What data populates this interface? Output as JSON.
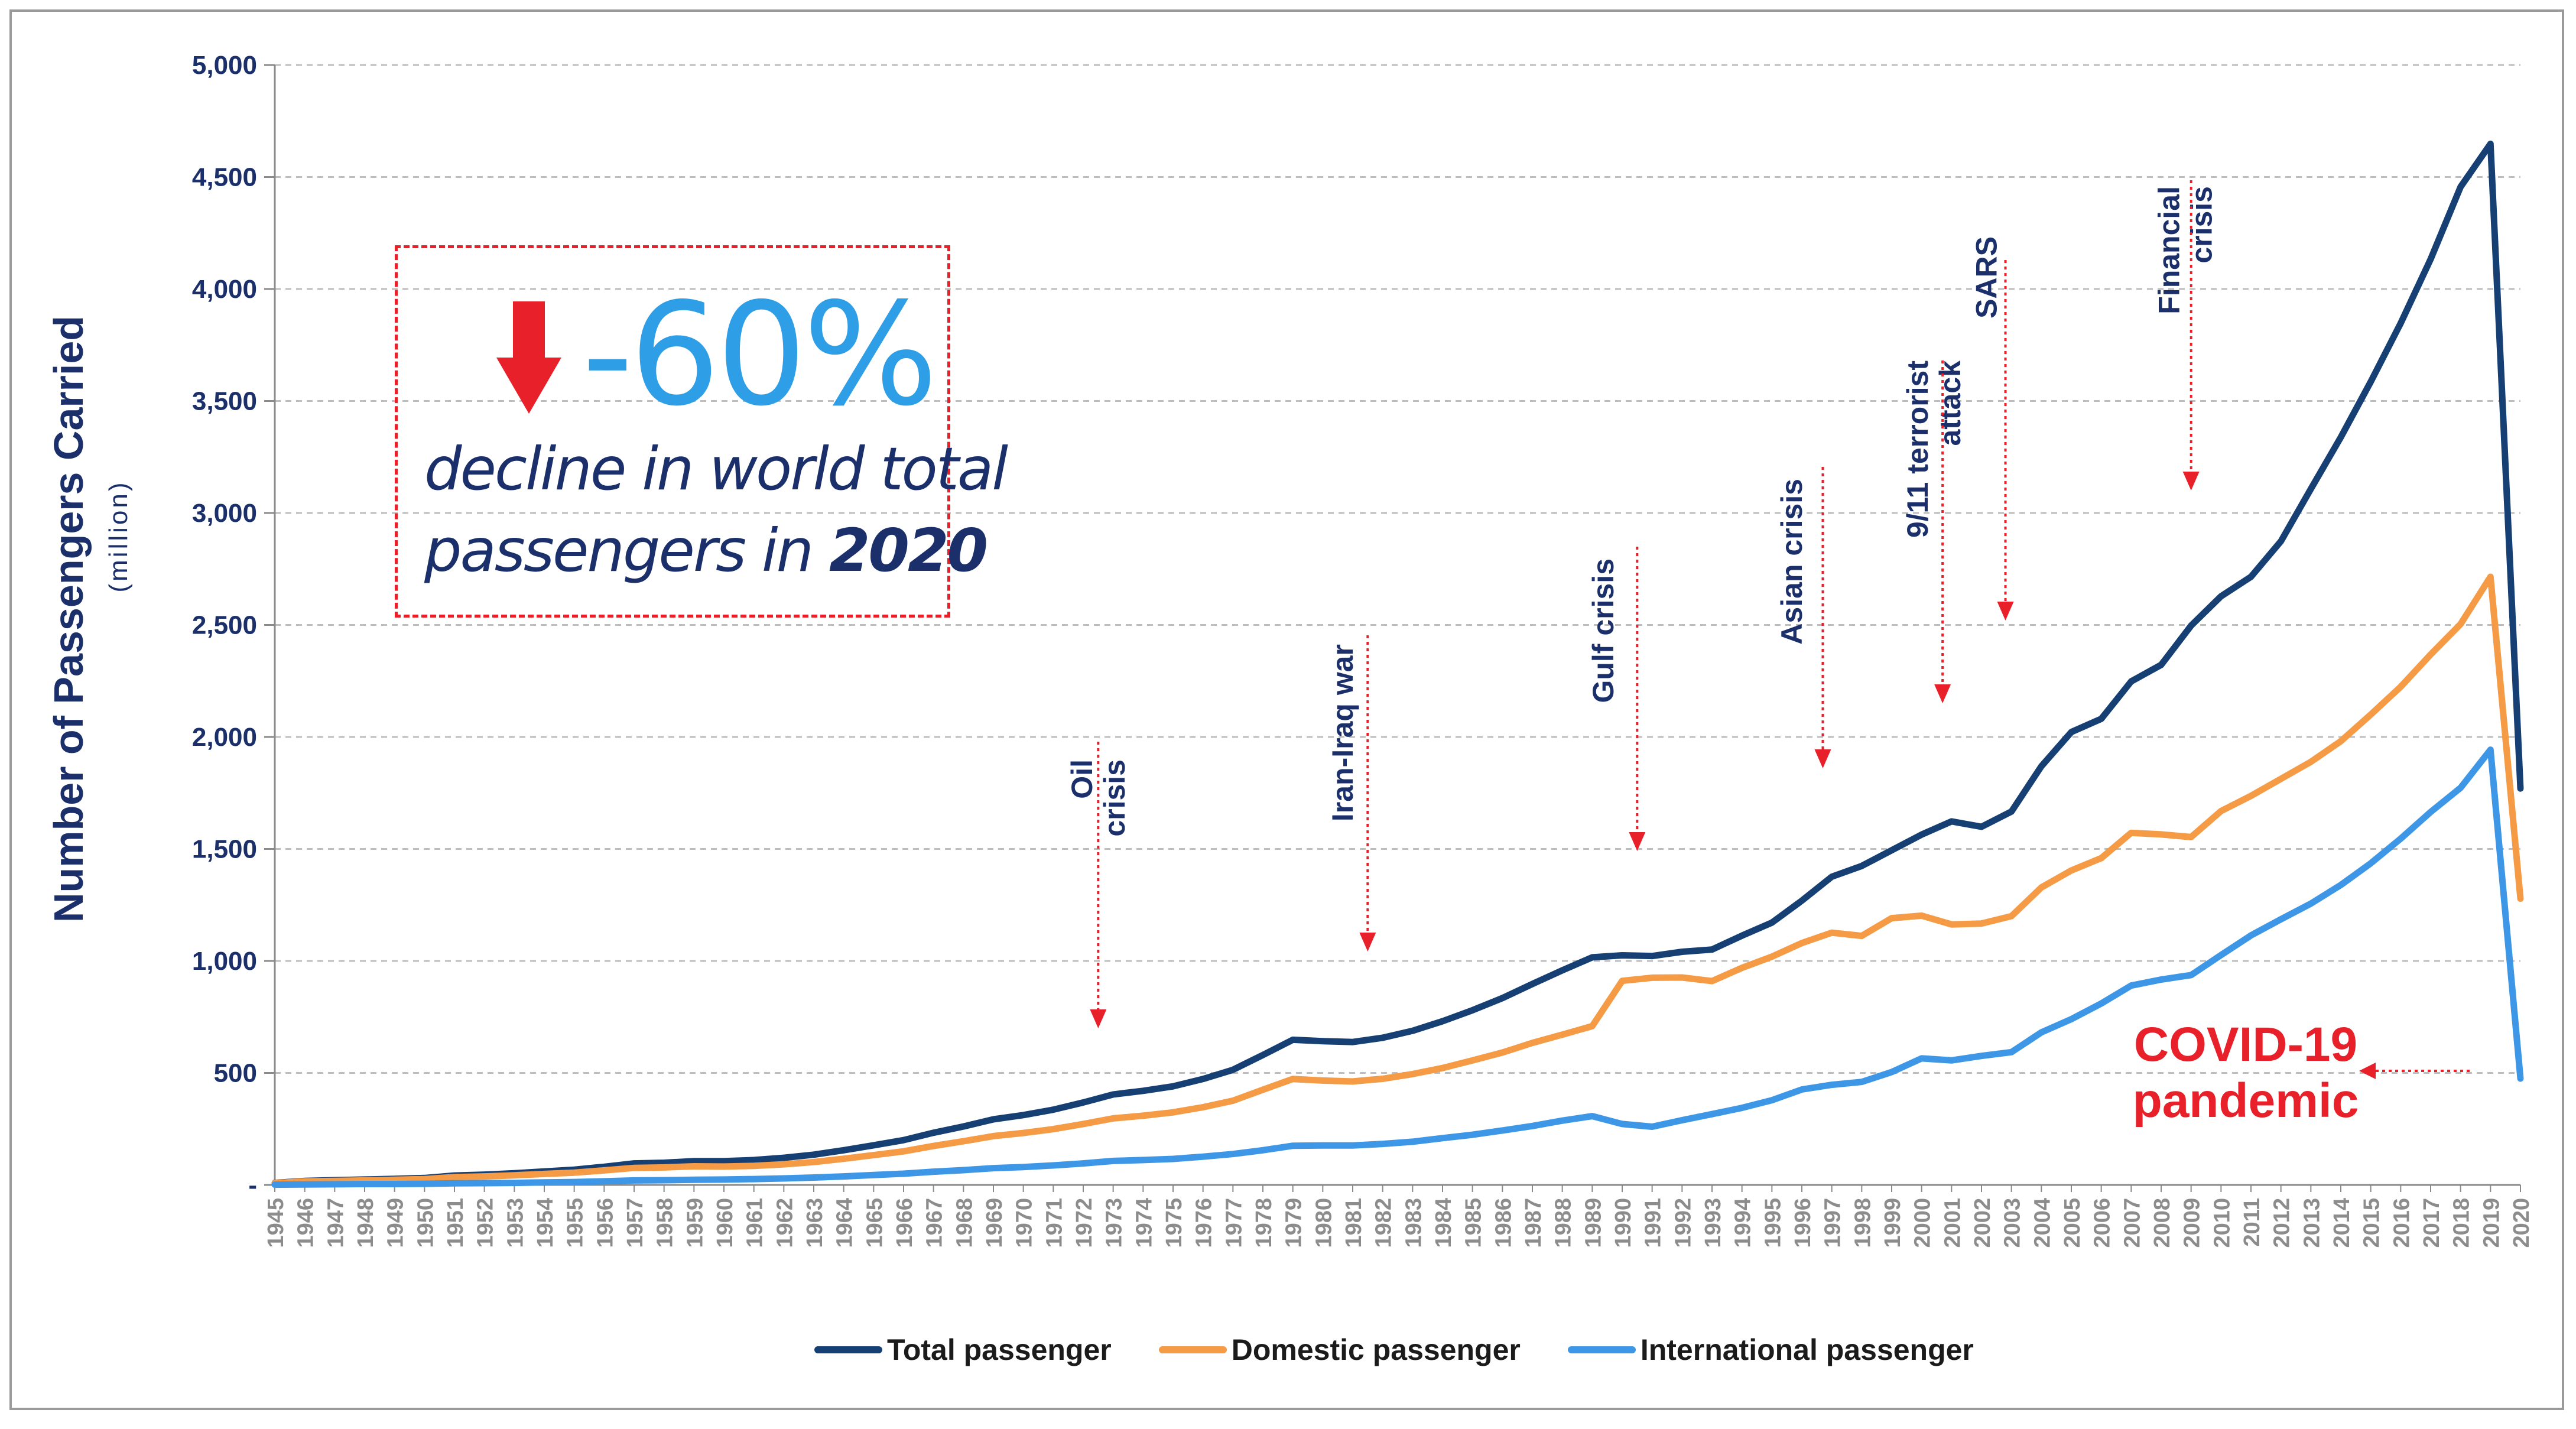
{
  "chart_data": {
    "type": "line",
    "title": "",
    "ylabel": "Number of Passengers Carried",
    "ylabel_sub": "(million)",
    "xlabel": "",
    "ylim": [
      0,
      5000
    ],
    "yticks": [
      0,
      500,
      1000,
      1500,
      2000,
      2500,
      3000,
      3500,
      4000,
      4500,
      5000
    ],
    "ytick_labels": [
      "-",
      "500",
      "1,000",
      "1,500",
      "2,000",
      "2,500",
      "3,000",
      "3,500",
      "4,000",
      "4,500",
      "5,000"
    ],
    "x": [
      1945,
      1946,
      1947,
      1948,
      1949,
      1950,
      1951,
      1952,
      1953,
      1954,
      1955,
      1956,
      1957,
      1958,
      1959,
      1960,
      1961,
      1962,
      1963,
      1964,
      1965,
      1966,
      1967,
      1968,
      1969,
      1970,
      1971,
      1972,
      1973,
      1974,
      1975,
      1976,
      1977,
      1978,
      1979,
      1980,
      1981,
      1982,
      1983,
      1984,
      1985,
      1986,
      1987,
      1988,
      1989,
      1990,
      1991,
      1992,
      1993,
      1994,
      1995,
      1996,
      1997,
      1998,
      1999,
      2000,
      2001,
      2002,
      2003,
      2004,
      2005,
      2006,
      2007,
      2008,
      2009,
      2010,
      2011,
      2012,
      2013,
      2014,
      2015,
      2016,
      2017,
      2018,
      2019,
      2020
    ],
    "series": [
      {
        "name": "Total passenger",
        "color": "#163f74",
        "values": [
          9,
          18,
          21,
          24,
          27,
          31,
          42,
          46,
          52,
          60,
          68,
          81,
          96,
          99,
          106,
          106,
          111,
          121,
          135,
          155,
          177,
          200,
          233,
          261,
          293,
          312,
          336,
          368,
          404,
          420,
          440,
          473,
          514,
          580,
          648,
          642,
          638,
          657,
          688,
          731,
          780,
          834,
          897,
          958,
          1016,
          1025,
          1022,
          1041,
          1051,
          1113,
          1171,
          1269,
          1376,
          1424,
          1494,
          1564,
          1623,
          1599,
          1667,
          1869,
          2022,
          2081,
          2248,
          2322,
          2497,
          2628,
          2715,
          2874,
          3107,
          3338,
          3586,
          3847,
          4133,
          4456,
          4648,
          1770
        ]
      },
      {
        "name": "Domestic passenger",
        "color": "#f59a45",
        "values": [
          8,
          16,
          18,
          20,
          23,
          26,
          35,
          38,
          43,
          49,
          55,
          65,
          76,
          78,
          83,
          82,
          85,
          92,
          102,
          117,
          133,
          150,
          174,
          195,
          218,
          232,
          249,
          272,
          297,
          309,
          324,
          347,
          376,
          425,
          473,
          466,
          462,
          474,
          495,
          522,
          556,
          591,
          634,
          671,
          709,
          911,
          925,
          926,
          910,
          969,
          1019,
          1080,
          1126,
          1112,
          1191,
          1202,
          1163,
          1167,
          1200,
          1328,
          1404,
          1459,
          1572,
          1565,
          1553,
          1669,
          1737,
          1813,
          1889,
          1981,
          2100,
          2224,
          2368,
          2504,
          2715,
          1278
        ]
      },
      {
        "name": "International passenger",
        "color": "#3d97e6",
        "values": [
          1,
          2,
          3,
          4,
          4,
          5,
          7,
          8,
          9,
          11,
          13,
          16,
          20,
          21,
          23,
          24,
          26,
          29,
          33,
          38,
          44,
          50,
          59,
          66,
          75,
          80,
          87,
          96,
          107,
          111,
          116,
          126,
          138,
          155,
          175,
          176,
          176,
          183,
          193,
          209,
          224,
          243,
          263,
          287,
          307,
          272,
          260,
          289,
          316,
          344,
          378,
          426,
          447,
          460,
          504,
          565,
          556,
          576,
          593,
          681,
          740,
          810,
          890,
          917,
          937,
          1026,
          1114,
          1186,
          1256,
          1339,
          1436,
          1546,
          1665,
          1773,
          1943,
          475
        ]
      }
    ],
    "annotations": [
      {
        "label": "Oil\ncrisis",
        "year": 1972.5
      },
      {
        "label": "Iran-Iraq war",
        "year": 1981.5
      },
      {
        "label": "Gulf crisis",
        "year": 1990.5
      },
      {
        "label": "Asian crisis",
        "year": 1996.7
      },
      {
        "label": "9/11 terrorist\nattack",
        "year": 2000.7
      },
      {
        "label": "SARS",
        "year": 2002.8
      },
      {
        "label": "Financial\ncrisis",
        "year": 2009
      },
      {
        "label": "COVID-19\npandemic",
        "year": 2019
      }
    ],
    "callout": {
      "percent": "-60%",
      "line1": "decline in world total",
      "line2_prefix": "passengers in ",
      "line2_bold": "2020"
    }
  },
  "colors": {
    "axis_text": "#1b2f6b",
    "annotation_text": "#1b2f6b",
    "arrow": "#e8202a",
    "covid": "#e8202a",
    "grid": "#bdbdbd"
  }
}
